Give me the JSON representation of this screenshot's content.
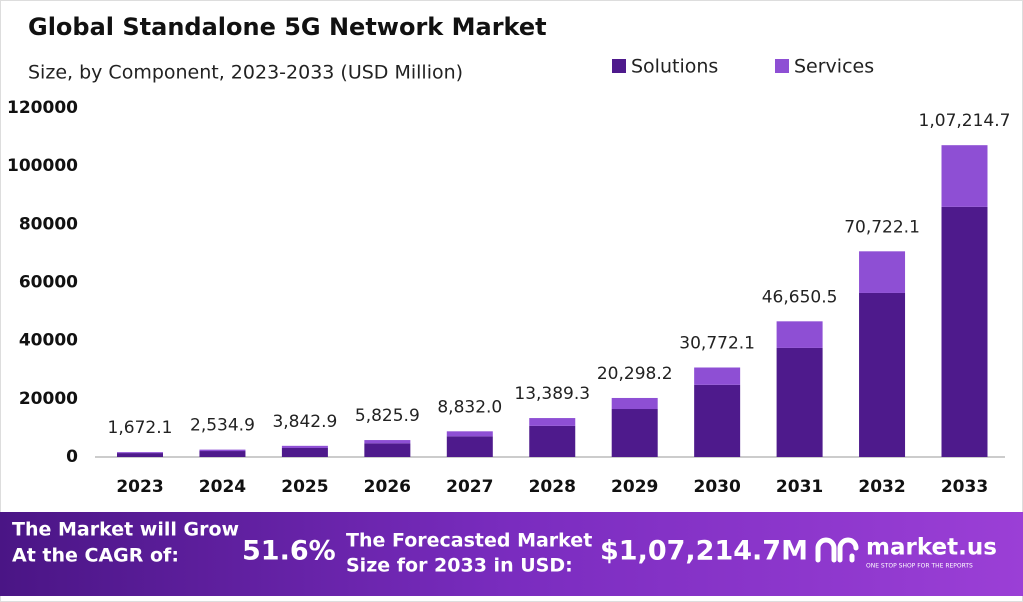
{
  "chart_data": {
    "type": "stacked_bar",
    "title": "Global Standalone 5G Network Market",
    "subtitle": "Size, by Component, 2023-2033 (USD Million)",
    "categories": [
      "2023",
      "2024",
      "2025",
      "2026",
      "2027",
      "2028",
      "2029",
      "2030",
      "2031",
      "2032",
      "2033"
    ],
    "series": [
      {
        "name": "Solutions",
        "color": "#4e1a8c",
        "values": [
          1350,
          2050,
          3100,
          4700,
          7100,
          10700,
          16500,
          24800,
          37500,
          56400,
          86000
        ]
      },
      {
        "name": "Services",
        "color": "#8e4fd4",
        "values": [
          322.1,
          484.9,
          742.9,
          1125.9,
          1732.0,
          2689.3,
          3798.2,
          5972.1,
          9150.5,
          14322.1,
          21214.7
        ]
      }
    ],
    "totals": [
      1672.1,
      2534.9,
      3842.9,
      5825.9,
      8832.0,
      13389.3,
      20298.2,
      30772.1,
      46650.5,
      70722.1,
      107214.7
    ],
    "total_labels": [
      "1,672.1",
      "2,534.9",
      "3,842.9",
      "5,825.9",
      "8,832.0",
      "13,389.3",
      "20,298.2",
      "30,772.1",
      "46,650.5",
      "70,722.1",
      "1,07,214.7"
    ],
    "ylim": [
      0,
      120000
    ],
    "yticks": [
      0,
      20000,
      40000,
      60000,
      80000,
      100000,
      120000
    ],
    "grid": false,
    "legend": "top-right"
  },
  "banner": {
    "cagr_text": [
      "The Market will Grow",
      "At the CAGR of:"
    ],
    "cagr_value": "51.6%",
    "forecast_text": [
      "The Forecasted Market",
      "Size for 2033 in USD:"
    ],
    "forecast_value": "$1,07,214.7M",
    "brand": "market.us",
    "tagline": "ONE STOP SHOP FOR THE REPORTS"
  }
}
